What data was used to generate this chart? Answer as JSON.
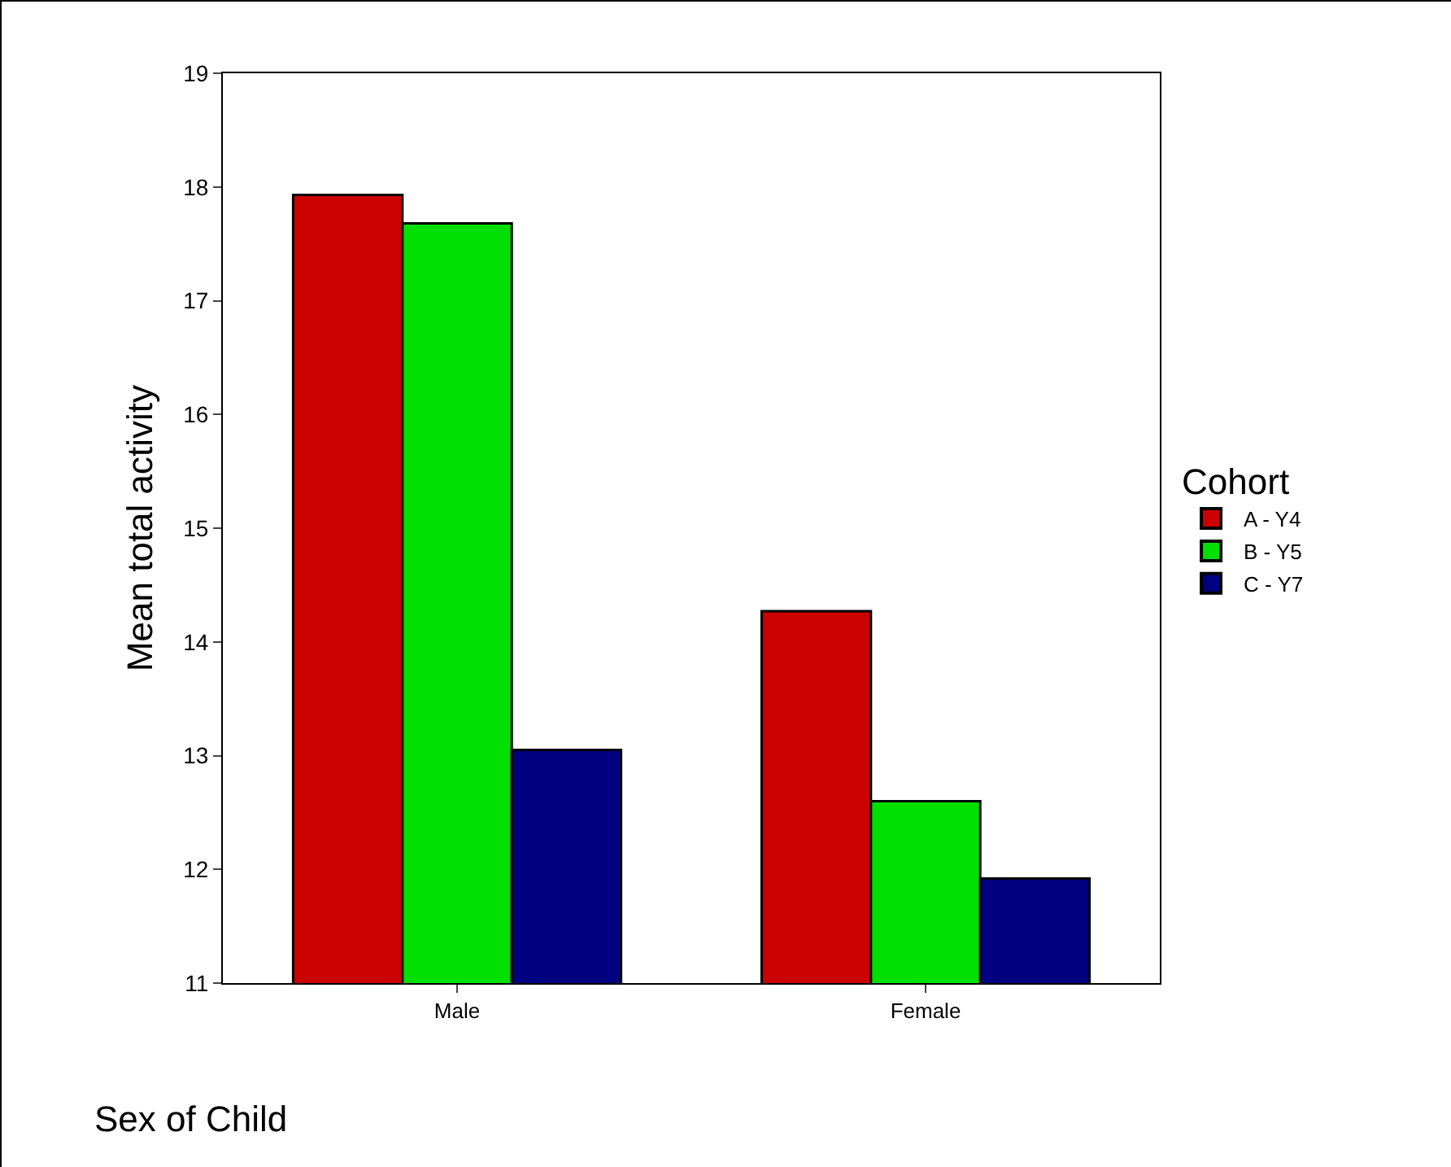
{
  "chart_data": {
    "type": "bar",
    "xlabel": "Sex of Child",
    "ylabel": "Mean total activity",
    "legend_title": "Cohort",
    "categories": [
      "Male",
      "Female"
    ],
    "series": [
      {
        "name": "A - Y4",
        "color": "#cc0000",
        "values": [
          17.93,
          14.27
        ]
      },
      {
        "name": "B - Y5",
        "color": "#00e000",
        "values": [
          17.68,
          12.6
        ]
      },
      {
        "name": "C - Y7",
        "color": "#000080",
        "values": [
          13.05,
          11.92
        ]
      }
    ],
    "ylim": [
      11,
      19
    ],
    "yticks": [
      11,
      12,
      13,
      14,
      15,
      16,
      17,
      18,
      19
    ],
    "grid": false,
    "legend": "right"
  }
}
